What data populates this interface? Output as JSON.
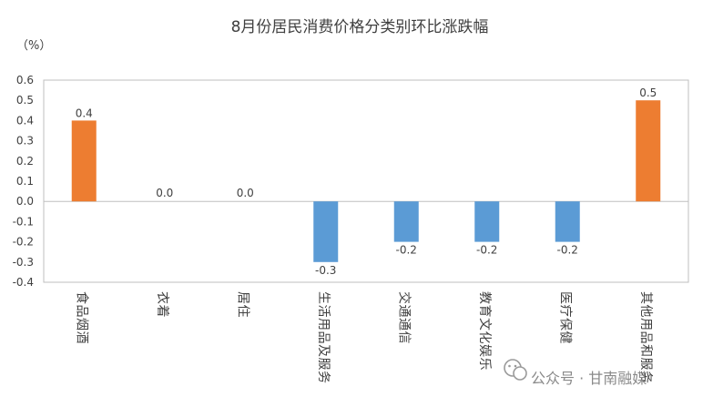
{
  "chart_data": {
    "type": "bar",
    "title": "8月份居民消费价格分类别环比涨跌幅",
    "unit": "（%）",
    "categories": [
      "食品烟酒",
      "衣着",
      "居住",
      "生活用品及服务",
      "交通通信",
      "教育文化娱乐",
      "医疗保健",
      "其他用品和服务"
    ],
    "values": [
      0.4,
      0.0,
      0.0,
      -0.3,
      -0.2,
      -0.2,
      -0.2,
      0.5
    ],
    "data_labels": [
      "0.4",
      "0.0",
      "0.0",
      "-0.3",
      "-0.2",
      "-0.2",
      "-0.2",
      "0.5"
    ],
    "ylim": [
      -0.4,
      0.6
    ],
    "yticks": [
      "0.6",
      "0.5",
      "0.4",
      "0.3",
      "0.2",
      "0.1",
      "0.0",
      "-0.1",
      "-0.2",
      "-0.3",
      "-0.4"
    ],
    "ytick_values": [
      0.6,
      0.5,
      0.4,
      0.3,
      0.2,
      0.1,
      0.0,
      -0.1,
      -0.2,
      -0.3,
      -0.4
    ],
    "grid": false,
    "legend": "none",
    "colors": {
      "positive": "#ED7D31",
      "negative": "#5B9BD5",
      "axis": "#BFBFBF"
    }
  },
  "watermark": {
    "icon": "wechat-icon",
    "text": "公众号 · 甘南融媒"
  }
}
